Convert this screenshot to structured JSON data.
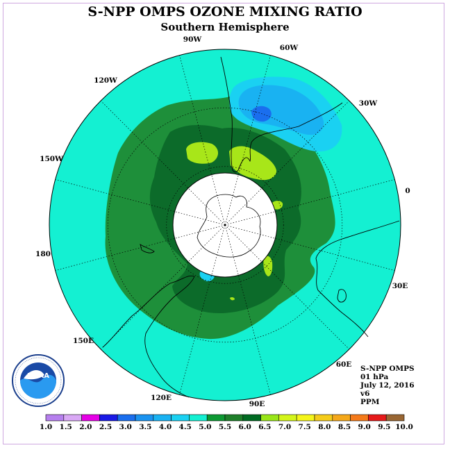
{
  "title": "S-NPP OMPS OZONE MIXING RATIO",
  "subtitle": "Southern Hemisphere",
  "longitude_labels": [
    "90W",
    "60W",
    "30W",
    "0",
    "30E",
    "60E",
    "90E",
    "120E",
    "150E",
    "180",
    "150W",
    "120W"
  ],
  "info": {
    "instrument": "S-NPP OMPS",
    "pressure": "01 hPa",
    "date": "July 12, 2016",
    "version": "v6",
    "units": "PPM"
  },
  "logo_text": "NOAA",
  "colorbar": {
    "ticks": [
      "1.0",
      "1.5",
      "2.0",
      "2.5",
      "3.0",
      "3.5",
      "4.0",
      "4.5",
      "5.0",
      "5.5",
      "6.0",
      "6.5",
      "7.0",
      "7.5",
      "8.0",
      "8.5",
      "9.0",
      "9.5",
      "10.0"
    ],
    "colors": [
      "#b67fee",
      "#d9a8f5",
      "#e600e6",
      "#1a1ae6",
      "#1a6eee",
      "#1a93f0",
      "#19b2f2",
      "#1ad1f2",
      "#14f0d2",
      "#0d9933",
      "#1e7f2a",
      "#006b22",
      "#99e619",
      "#d4f51a",
      "#f5f51a",
      "#f5cc1a",
      "#f5a81a",
      "#f57a1a",
      "#e61a1a",
      "#996633"
    ]
  },
  "map_colors": {
    "background": "#14f0d2",
    "contour_5_5": "#1e8f3a",
    "contour_6_0": "#0c6b2a",
    "contour_6_5": "#a8e619",
    "contour_4_0": "#1ad1f2",
    "contour_3_5": "#19b2f2",
    "contour_3_0": "#1a6eee"
  }
}
